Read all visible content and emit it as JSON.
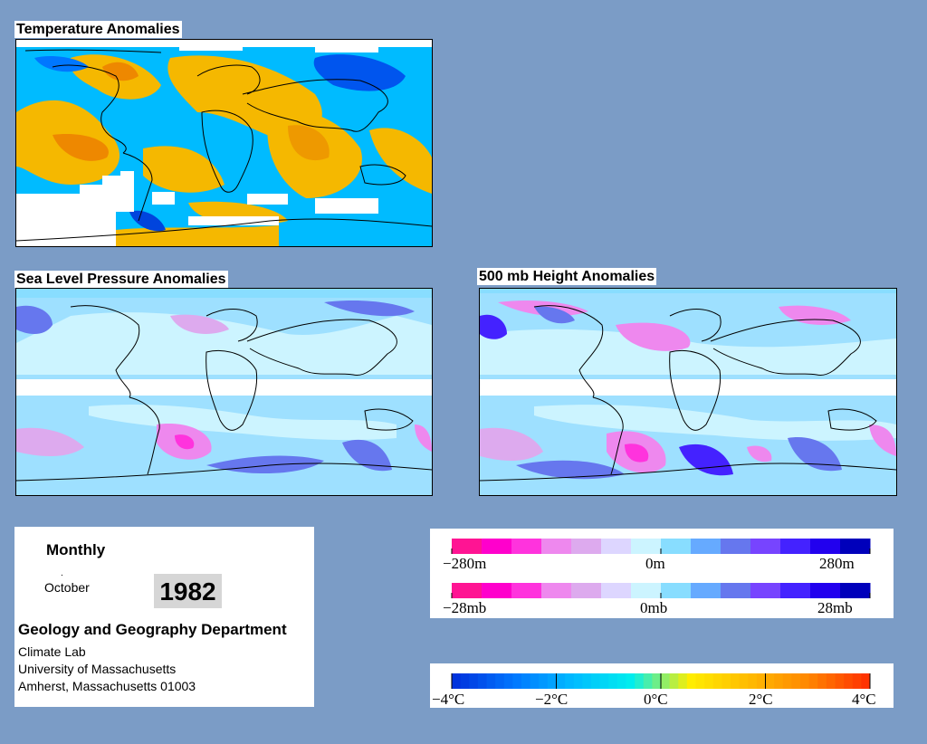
{
  "panels": {
    "temperature": {
      "title": "Temperature Anomalies"
    },
    "slp": {
      "title": "Sea Level Pressure Anomalies"
    },
    "height500": {
      "title": "500 mb Height Anomalies"
    }
  },
  "info": {
    "period": "Monthly",
    "month": "October",
    "year": "1982",
    "department": "Geology and Geography Department",
    "lab": "Climate Lab",
    "university": "University of Massachusetts",
    "address": "Amherst, Massachusetts 01003"
  },
  "legend_height": {
    "labels": [
      "−280m",
      "0m",
      "280m"
    ],
    "colors": [
      "#ff1493",
      "#ff00cc",
      "#ff33dd",
      "#ee88ee",
      "#ddaaee",
      "#ddd6ff",
      "#ccf4ff",
      "#88ddff",
      "#66aaff",
      "#6677ee",
      "#7744ff",
      "#4422ff",
      "#2200ee",
      "#0000bb"
    ]
  },
  "legend_pressure": {
    "labels": [
      "−28mb",
      "0mb",
      "28mb"
    ]
  },
  "legend_temp": {
    "labels": [
      "−4°C",
      "−2°C",
      "0°C",
      "2°C",
      "4°C"
    ],
    "colors": [
      "#0033dd",
      "#0077ff",
      "#00bbff",
      "#00eeee",
      "#ffee00",
      "#ffbb00",
      "#ff8800",
      "#ff3300"
    ]
  },
  "colors": {
    "background": "#7b9cc6",
    "anomaly_pos_temp": "#f5b800",
    "anomaly_neg_temp": "#00bbff",
    "ocean_fill": "#9ee0ff"
  }
}
